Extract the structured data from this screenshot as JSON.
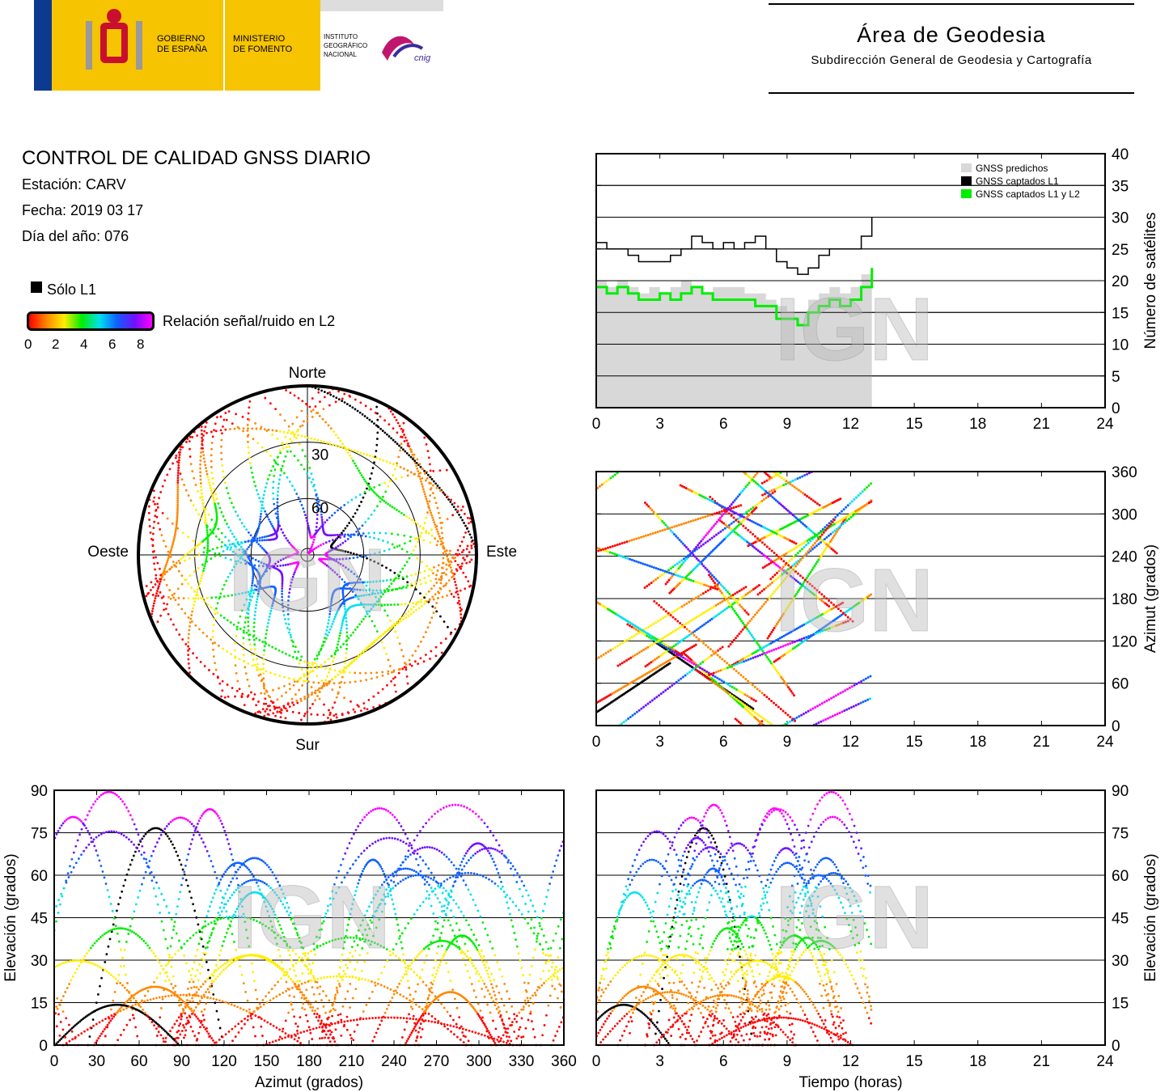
{
  "header": {
    "gov1": "GOBIERNO",
    "gov2": "DE ESPAÑA",
    "min1": "MINISTERIO",
    "min2": "DE FOMENTO",
    "ign1": "INSTITUTO",
    "ign2": "GEOGRÁFICO",
    "ign3": "NACIONAL",
    "cnig": "cnig",
    "area": "Área de Geodesia",
    "subdir": "Subdirección General de Geodesia y Cartografía"
  },
  "info": {
    "title": "CONTROL DE CALIDAD GNSS DIARIO",
    "station": "Estación: CARV",
    "date": "Fecha: 2019 03 17",
    "doy": "Día del año: 076"
  },
  "legend": {
    "solo_l1": "Sólo L1",
    "snr_label": "Relación señal/ruido en L2",
    "snr_ticks": [
      "0",
      "2",
      "4",
      "6",
      "8"
    ]
  },
  "watermark": "IGN",
  "colors": {
    "predicted": "#d8d8d8",
    "l1": "#000000",
    "l1l2": "#00ee00",
    "snr_scale": [
      "#ff0000",
      "#ff8800",
      "#ffee00",
      "#00ee00",
      "#00e0ee",
      "#1060ff",
      "#7010ff",
      "#ff00ff"
    ]
  },
  "chart_data": [
    {
      "id": "skyplot",
      "type": "scatter",
      "cardinal": {
        "north": "Norte",
        "south": "Sur",
        "east": "Este",
        "west": "Oeste"
      },
      "rings": [
        "30",
        "60"
      ]
    },
    {
      "id": "nsat",
      "type": "line",
      "ylabel": "Número de satélites",
      "xlim": [
        0,
        24
      ],
      "ylim": [
        0,
        40
      ],
      "xticks": [
        "0",
        "3",
        "6",
        "9",
        "12",
        "15",
        "18",
        "21",
        "24"
      ],
      "yticks": [
        "0",
        "5",
        "10",
        "15",
        "20",
        "25",
        "30",
        "35",
        "40"
      ],
      "legend": [
        "GNSS predichos",
        "GNSS captados L1",
        "GNSS captados L1 y L2"
      ],
      "x": [
        0,
        0.5,
        1,
        1.5,
        2,
        2.5,
        3,
        3.5,
        4,
        4.5,
        5,
        5.5,
        6,
        6.5,
        7,
        7.5,
        8,
        8.5,
        9,
        9.5,
        10,
        10.5,
        11,
        11.5,
        12,
        12.5,
        13
      ],
      "series": [
        {
          "name": "GNSS predichos",
          "values": [
            20,
            19,
            20,
            19,
            18,
            19,
            18,
            19,
            20,
            19,
            18,
            19,
            19,
            19,
            18,
            18,
            17,
            16,
            15,
            15,
            17,
            18,
            19,
            18,
            19,
            21,
            23
          ]
        },
        {
          "name": "GNSS captados L1",
          "values": [
            26,
            25,
            25,
            24,
            23,
            23,
            23,
            24,
            25,
            27,
            26,
            25,
            26,
            25,
            26,
            27,
            25,
            23,
            22,
            21,
            22,
            24,
            25,
            25,
            25,
            27,
            30
          ]
        },
        {
          "name": "GNSS captados L1 y L2",
          "values": [
            19,
            18,
            19,
            18,
            17,
            17,
            18,
            17,
            18,
            19,
            18,
            17,
            17,
            17,
            17,
            16,
            16,
            14,
            14,
            13,
            15,
            16,
            17,
            16,
            17,
            19,
            22
          ]
        }
      ]
    },
    {
      "id": "az_time",
      "type": "scatter",
      "ylabel": "Azimut (grados)",
      "xlim": [
        0,
        24
      ],
      "ylim": [
        0,
        360
      ],
      "xticks": [
        "0",
        "3",
        "6",
        "9",
        "12",
        "15",
        "18",
        "21",
        "24"
      ],
      "yticks": [
        "0",
        "60",
        "120",
        "180",
        "240",
        "300",
        "360"
      ]
    },
    {
      "id": "el_az",
      "type": "scatter",
      "xlabel": "Azimut (grados)",
      "ylabel": "Elevación (grados)",
      "xlim": [
        0,
        360
      ],
      "ylim": [
        0,
        90
      ],
      "xticks": [
        "0",
        "30",
        "60",
        "90",
        "120",
        "150",
        "180",
        "210",
        "240",
        "270",
        "300",
        "330",
        "360"
      ],
      "yticks": [
        "0",
        "15",
        "30",
        "45",
        "60",
        "75",
        "90"
      ]
    },
    {
      "id": "el_time",
      "type": "scatter",
      "xlabel": "Tiempo (horas)",
      "ylabel": "Elevación (grados)",
      "xlim": [
        0,
        24
      ],
      "ylim": [
        0,
        90
      ],
      "xticks": [
        "0",
        "3",
        "6",
        "9",
        "12",
        "15",
        "18",
        "21",
        "24"
      ],
      "yticks": [
        "0",
        "15",
        "30",
        "45",
        "60",
        "75",
        "90"
      ]
    }
  ]
}
